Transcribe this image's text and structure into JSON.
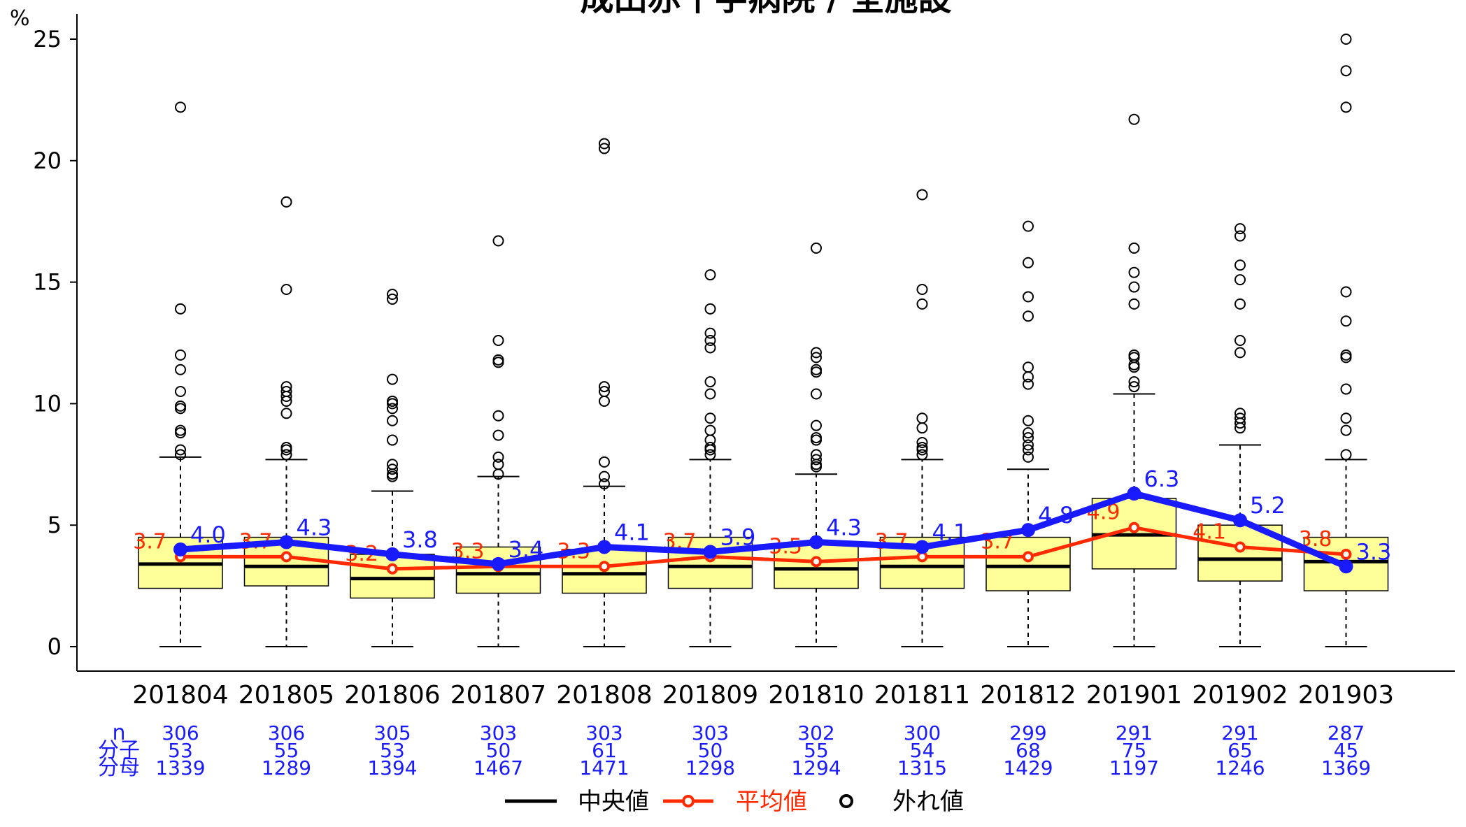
{
  "chart_data": {
    "type": "boxplot",
    "title": "成田赤十字病院 / 全施設",
    "ylabel": "%",
    "ylim": [
      0,
      25
    ],
    "yticks": [
      0,
      5,
      10,
      15,
      20,
      25
    ],
    "categories": [
      "201804",
      "201805",
      "201806",
      "201807",
      "201808",
      "201809",
      "201810",
      "201811",
      "201812",
      "201901",
      "201902",
      "201903"
    ],
    "boxes": [
      {
        "q1": 2.4,
        "median": 3.4,
        "q3": 4.5,
        "whisker_low": 0,
        "whisker_high": 7.8,
        "outliers": [
          7.9,
          8.1,
          8.8,
          8.9,
          9.8,
          9.9,
          10.5,
          11.4,
          12.0,
          13.9,
          22.2
        ]
      },
      {
        "q1": 2.5,
        "median": 3.3,
        "q3": 4.5,
        "whisker_low": 0,
        "whisker_high": 7.7,
        "outliers": [
          7.9,
          8.1,
          8.2,
          9.6,
          10.1,
          10.3,
          10.5,
          10.7,
          14.7,
          18.3
        ]
      },
      {
        "q1": 2.0,
        "median": 2.8,
        "q3": 3.8,
        "whisker_low": 0,
        "whisker_high": 6.4,
        "outliers": [
          7.0,
          7.1,
          7.3,
          7.5,
          8.5,
          9.3,
          9.8,
          10.0,
          10.1,
          11.0,
          14.3,
          14.5
        ]
      },
      {
        "q1": 2.2,
        "median": 3.0,
        "q3": 4.1,
        "whisker_low": 0,
        "whisker_high": 7.0,
        "outliers": [
          7.1,
          7.5,
          7.8,
          8.7,
          9.5,
          11.7,
          11.8,
          12.6,
          16.7
        ]
      },
      {
        "q1": 2.2,
        "median": 3.0,
        "q3": 4.0,
        "whisker_low": 0,
        "whisker_high": 6.6,
        "outliers": [
          6.7,
          7.0,
          7.6,
          10.1,
          10.5,
          10.7,
          20.5,
          20.7
        ]
      },
      {
        "q1": 2.4,
        "median": 3.3,
        "q3": 4.5,
        "whisker_low": 0,
        "whisker_high": 7.7,
        "outliers": [
          7.9,
          8.1,
          8.2,
          8.5,
          8.9,
          9.4,
          10.4,
          10.9,
          12.3,
          12.6,
          12.9,
          13.9,
          15.3
        ]
      },
      {
        "q1": 2.4,
        "median": 3.2,
        "q3": 4.2,
        "whisker_low": 0,
        "whisker_high": 7.1,
        "outliers": [
          7.4,
          7.5,
          7.7,
          7.9,
          8.5,
          8.6,
          9.1,
          10.4,
          11.3,
          11.4,
          11.9,
          12.1,
          16.4
        ]
      },
      {
        "q1": 2.4,
        "median": 3.3,
        "q3": 4.5,
        "whisker_low": 0,
        "whisker_high": 7.7,
        "outliers": [
          7.9,
          8.1,
          8.2,
          8.4,
          9.0,
          9.4,
          14.1,
          14.7,
          18.6
        ]
      },
      {
        "q1": 2.3,
        "median": 3.3,
        "q3": 4.5,
        "whisker_low": 0,
        "whisker_high": 7.3,
        "outliers": [
          7.8,
          8.1,
          8.3,
          8.6,
          8.8,
          9.3,
          10.8,
          11.1,
          11.5,
          13.6,
          14.4,
          15.8,
          17.3
        ]
      },
      {
        "q1": 3.2,
        "median": 4.6,
        "q3": 6.1,
        "whisker_low": 0,
        "whisker_high": 10.4,
        "outliers": [
          10.7,
          10.9,
          11.5,
          11.6,
          11.9,
          12.0,
          14.1,
          14.8,
          15.4,
          16.4,
          21.7
        ]
      },
      {
        "q1": 2.7,
        "median": 3.6,
        "q3": 5.0,
        "whisker_low": 0,
        "whisker_high": 8.3,
        "outliers": [
          9.0,
          9.2,
          9.4,
          9.6,
          12.1,
          12.6,
          14.1,
          15.1,
          15.7,
          16.9,
          17.2
        ]
      },
      {
        "q1": 2.3,
        "median": 3.5,
        "q3": 4.5,
        "whisker_low": 0,
        "whisker_high": 7.7,
        "outliers": [
          7.9,
          8.9,
          9.4,
          10.6,
          11.9,
          12.0,
          13.4,
          14.6,
          22.2,
          23.7,
          25.0
        ]
      }
    ],
    "series": [
      {
        "name": "成田赤十字病院",
        "values": [
          4.0,
          4.3,
          3.8,
          3.4,
          4.1,
          3.9,
          4.3,
          4.1,
          4.8,
          6.3,
          5.2,
          3.3
        ],
        "labels": [
          "4.0",
          "4.3",
          "3.8",
          "3.4",
          "4.1",
          "3.9",
          "4.3",
          "4.1",
          "4.8",
          "6.3",
          "5.2",
          "3.3"
        ],
        "color": "#1a1aff"
      },
      {
        "name": "平均値",
        "values": [
          3.7,
          3.7,
          3.2,
          3.3,
          3.3,
          3.7,
          3.5,
          3.7,
          3.7,
          4.9,
          4.1,
          3.8
        ],
        "labels": [
          "3.7",
          "3.7",
          "3.2",
          "3.3",
          "3.3",
          "3.7",
          "3.5",
          "3.7",
          "3.7",
          "4.9",
          "4.1",
          "3.8"
        ],
        "color": "#ff2a00"
      }
    ],
    "stats_row_labels": [
      "n",
      "分子",
      "分母"
    ],
    "stats": {
      "n": [
        "306",
        "306",
        "305",
        "303",
        "303",
        "303",
        "302",
        "300",
        "299",
        "291",
        "291",
        "287"
      ],
      "numerator": [
        "53",
        "55",
        "53",
        "50",
        "61",
        "50",
        "55",
        "54",
        "68",
        "75",
        "65",
        "45"
      ],
      "denominator": [
        "1339",
        "1289",
        "1394",
        "1467",
        "1471",
        "1298",
        "1294",
        "1315",
        "1429",
        "1197",
        "1246",
        "1369"
      ]
    },
    "legend": [
      {
        "label": "中央値",
        "color": "#000000"
      },
      {
        "label": "平均値",
        "color": "#ff2a00"
      },
      {
        "label": "外れ値",
        "color": "#000000"
      }
    ],
    "box_fill": "#ffff99"
  }
}
